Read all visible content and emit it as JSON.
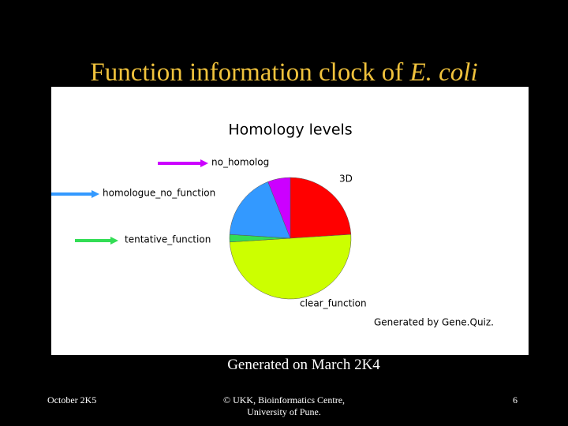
{
  "slide": {
    "title": "Function information clock of",
    "title_italic": "E. coli",
    "caption": "Generated on March 2K4",
    "footer": {
      "date": "October 2K5",
      "credit": [
        "© UKK, Bioinformatics Centre,",
        "University of Pune."
      ],
      "page": "6"
    }
  },
  "chart_data": {
    "type": "pie",
    "title": "Homology levels",
    "note": "Generated by Gene.Quiz.",
    "categories": [
      "3D",
      "clear_function",
      "tentative_function",
      "homologue_no_function",
      "no_homolog"
    ],
    "values": [
      24,
      50,
      2,
      18,
      6
    ],
    "colors": [
      "#ff0000",
      "#ccff00",
      "#33dd55",
      "#3399ff",
      "#cc00ff"
    ]
  }
}
